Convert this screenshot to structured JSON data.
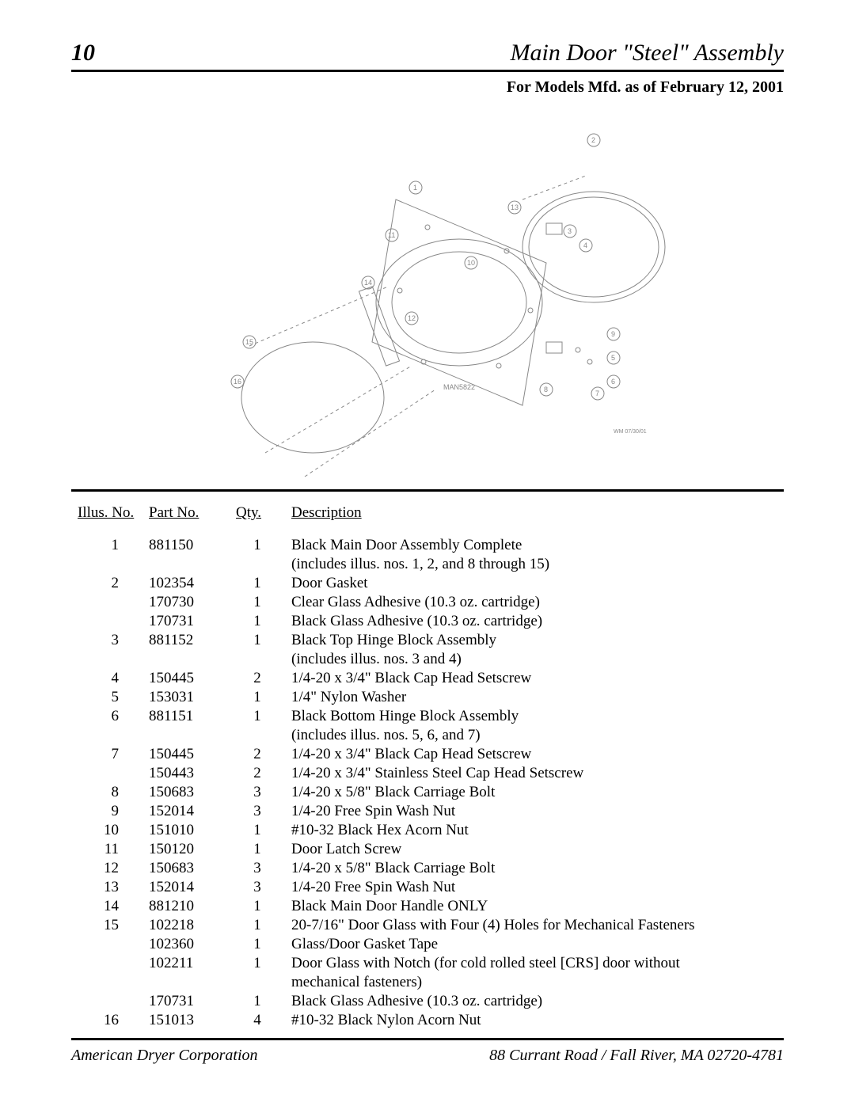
{
  "page_number": "10",
  "title": "Main Door \"Steel\" Assembly",
  "subtitle": "For Models Mfd. as of February 12, 2001",
  "diagram": {
    "drawing_number": "MAN5822",
    "revision_note": "WM 07/30/01",
    "callouts": [
      "1",
      "2",
      "3",
      "4",
      "5",
      "6",
      "7",
      "8",
      "9",
      "10",
      "11",
      "12",
      "13",
      "14",
      "15",
      "16"
    ]
  },
  "columns": {
    "illus": "Illus. No.",
    "part": "Part No.",
    "qty": "Qty.",
    "desc": "Description"
  },
  "rows": [
    {
      "illus": "1",
      "part": "881150",
      "qty": "1",
      "desc": "Black Main Door Assembly Complete"
    },
    {
      "illus": "",
      "part": "",
      "qty": "",
      "desc": "(includes illus. nos. 1, 2, and 8 through 15)"
    },
    {
      "illus": "2",
      "part": "102354",
      "qty": "1",
      "desc": "Door Gasket"
    },
    {
      "illus": "",
      "part": "170730",
      "qty": "1",
      "desc": "Clear Glass Adhesive (10.3 oz. cartridge)"
    },
    {
      "illus": "",
      "part": "170731",
      "qty": "1",
      "desc": "Black Glass Adhesive (10.3 oz. cartridge)"
    },
    {
      "illus": "3",
      "part": "881152",
      "qty": "1",
      "desc": "Black Top Hinge Block Assembly"
    },
    {
      "illus": "",
      "part": "",
      "qty": "",
      "desc": "(includes illus. nos. 3 and 4)"
    },
    {
      "illus": "4",
      "part": "150445",
      "qty": "2",
      "desc": "1/4-20 x 3/4\" Black Cap Head Setscrew"
    },
    {
      "illus": "5",
      "part": "153031",
      "qty": "1",
      "desc": "1/4\" Nylon Washer"
    },
    {
      "illus": "6",
      "part": "881151",
      "qty": "1",
      "desc": "Black Bottom Hinge Block Assembly"
    },
    {
      "illus": "",
      "part": "",
      "qty": "",
      "desc": "(includes illus. nos. 5, 6, and 7)"
    },
    {
      "illus": "7",
      "part": "150445",
      "qty": "2",
      "desc": "1/4-20 x 3/4\" Black Cap Head Setscrew"
    },
    {
      "illus": "",
      "part": "150443",
      "qty": "2",
      "desc": "1/4-20 x 3/4\" Stainless Steel Cap Head Setscrew"
    },
    {
      "illus": "8",
      "part": "150683",
      "qty": "3",
      "desc": "1/4-20 x 5/8\" Black Carriage Bolt"
    },
    {
      "illus": "9",
      "part": "152014",
      "qty": "3",
      "desc": "1/4-20 Free Spin Wash Nut"
    },
    {
      "illus": "10",
      "part": "151010",
      "qty": "1",
      "desc": "#10-32 Black Hex Acorn Nut"
    },
    {
      "illus": "11",
      "part": "150120",
      "qty": "1",
      "desc": "Door Latch Screw"
    },
    {
      "illus": "12",
      "part": "150683",
      "qty": "3",
      "desc": "1/4-20 x 5/8\" Black Carriage Bolt"
    },
    {
      "illus": "13",
      "part": "152014",
      "qty": "3",
      "desc": "1/4-20 Free Spin Wash Nut"
    },
    {
      "illus": "14",
      "part": "881210",
      "qty": "1",
      "desc": "Black Main Door Handle ONLY"
    },
    {
      "illus": "15",
      "part": "102218",
      "qty": "1",
      "desc": "20-7/16\" Door Glass with Four (4) Holes for Mechanical Fasteners"
    },
    {
      "illus": "",
      "part": "102360",
      "qty": "1",
      "desc": "Glass/Door Gasket Tape"
    },
    {
      "illus": "",
      "part": "102211",
      "qty": "1",
      "desc": "Door Glass with Notch (for cold rolled steel [CRS] door without"
    },
    {
      "illus": "",
      "part": "",
      "qty": "",
      "desc": "mechanical fasteners)"
    },
    {
      "illus": "",
      "part": "170731",
      "qty": "1",
      "desc": "Black Glass Adhesive (10.3 oz. cartridge)"
    },
    {
      "illus": "16",
      "part": "151013",
      "qty": "4",
      "desc": "#10-32 Black Nylon Acorn Nut"
    }
  ],
  "footer": {
    "company": "American Dryer Corporation",
    "address": "88 Currant Road / Fall River, MA 02720-4781"
  }
}
